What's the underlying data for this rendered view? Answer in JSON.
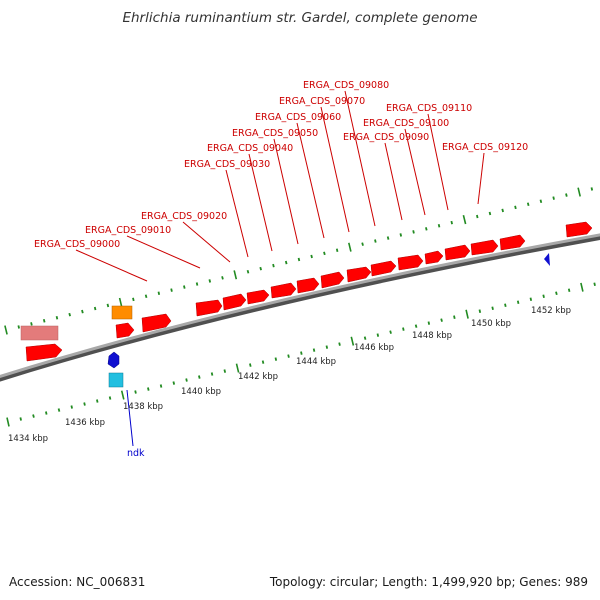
{
  "title": "Ehrlichia ruminantium str. Gardel, complete genome",
  "footer": {
    "accession": "Accession: NC_006831",
    "summary": "Topology: circular; Length: 1,499,920 bp; Genes: 989"
  },
  "colors": {
    "cds_forward": "#ff0000",
    "cds_pseudo": "#e37b7b",
    "orange_feature": "#ff8c00",
    "blue_feature": "#1010d0",
    "cyan_feature": "#22bfe0",
    "tick": "#228b22",
    "backbone": "#808080",
    "label_red": "#cc0000",
    "label_blue": "#0000cc"
  },
  "gene_labels": [
    "ERGA_CDS_09000",
    "ERGA_CDS_09010",
    "ERGA_CDS_09020",
    "ERGA_CDS_09030",
    "ERGA_CDS_09040",
    "ERGA_CDS_09050",
    "ERGA_CDS_09060",
    "ERGA_CDS_09070",
    "ERGA_CDS_09080",
    "ERGA_CDS_09090",
    "ERGA_CDS_09100",
    "ERGA_CDS_09110",
    "ERGA_CDS_09120"
  ],
  "reverse_labels": [
    "ndk"
  ],
  "scale_labels": [
    "1434 kbp",
    "1436 kbp",
    "1438 kbp",
    "1440 kbp",
    "1442 kbp",
    "1444 kbp",
    "1446 kbp",
    "1448 kbp",
    "1450 kbp",
    "1452 kbp"
  ]
}
